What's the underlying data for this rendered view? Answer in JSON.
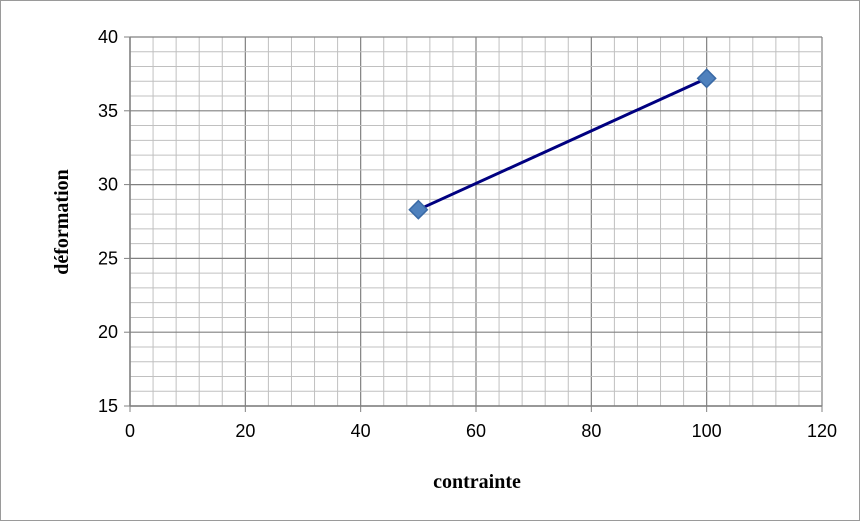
{
  "chart_data": {
    "type": "scatter",
    "title": "",
    "xlabel": "contrainte",
    "ylabel": "déformation",
    "xlim": [
      0,
      120
    ],
    "ylim": [
      15,
      40
    ],
    "x_ticks": [
      0,
      20,
      40,
      60,
      80,
      100,
      120
    ],
    "y_ticks": [
      15,
      20,
      25,
      30,
      35,
      40
    ],
    "grid": true,
    "legend": "none",
    "series": [
      {
        "x": [
          50,
          100
        ],
        "y": [
          28.3,
          37.2
        ],
        "marker": "diamond",
        "line": true
      }
    ],
    "colors": {
      "marker": "#4f81bd",
      "marker_edge": "#3a6aa6",
      "line": "#000080",
      "grid_major": "#808080",
      "grid_minor": "#c0c0c0",
      "axis": "#808080"
    }
  }
}
